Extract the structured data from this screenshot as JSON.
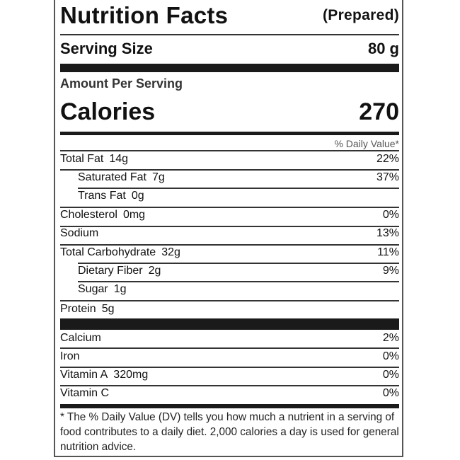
{
  "header": {
    "title": "Nutrition Facts",
    "subtitle": "(Prepared)"
  },
  "serving": {
    "label": "Serving Size",
    "value": "80 g"
  },
  "amount_per_serving": "Amount Per Serving",
  "calories": {
    "label": "Calories",
    "value": "270"
  },
  "daily_value_header": "% Daily Value*",
  "nutrients": [
    {
      "name": "Total Fat",
      "amount": "14g",
      "dv": "22%"
    },
    {
      "name": "Saturated Fat",
      "amount": "7g",
      "dv": "37%"
    },
    {
      "name": "Trans Fat",
      "amount": "0g",
      "dv": ""
    },
    {
      "name": "Cholesterol",
      "amount": "0mg",
      "dv": "0%"
    },
    {
      "name": "Sodium",
      "amount": "",
      "dv": "13%"
    },
    {
      "name": "Total Carbohydrate",
      "amount": "32g",
      "dv": "11%"
    },
    {
      "name": "Dietary Fiber",
      "amount": "2g",
      "dv": "9%"
    },
    {
      "name": "Sugar",
      "amount": "1g",
      "dv": ""
    },
    {
      "name": "Protein",
      "amount": "5g",
      "dv": ""
    }
  ],
  "vitamins": [
    {
      "name": "Calcium",
      "amount": "",
      "dv": "2%"
    },
    {
      "name": "Iron",
      "amount": "",
      "dv": "0%"
    },
    {
      "name": "Vitamin A",
      "amount": "320mg",
      "dv": "0%"
    },
    {
      "name": "Vitamin C",
      "amount": "",
      "dv": "0%"
    }
  ],
  "footnote": "* The % Daily Value (DV) tells you how much a nutrient in a serving of food contributes to a daily diet. 2,000 calories a day is used for general nutrition advice."
}
